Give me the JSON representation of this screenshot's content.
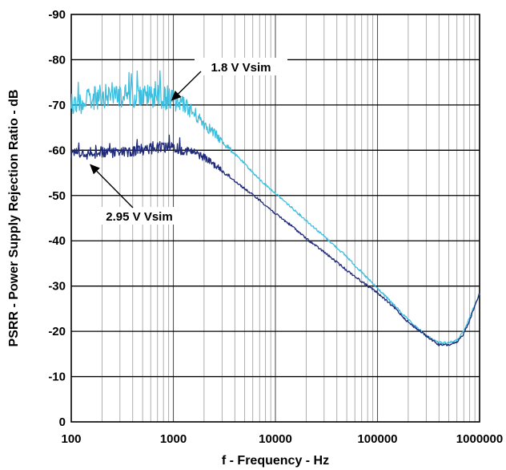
{
  "chart_data": {
    "type": "line",
    "xlabel": "f - Frequency - Hz",
    "ylabel": "PSRR - Power Supply Rejection Ratio - dB",
    "x_scale": "log",
    "xlim": [
      100,
      1000000
    ],
    "ylim": [
      0,
      -90
    ],
    "y_ticks": [
      0,
      -10,
      -20,
      -30,
      -40,
      -50,
      -60,
      -70,
      -80,
      -90
    ],
    "x_ticks": [
      100,
      1000,
      10000,
      100000,
      1000000
    ],
    "x_tick_labels": [
      "100",
      "1000",
      "10000",
      "100000",
      "1000000"
    ],
    "y_tick_labels": [
      "0",
      "-10",
      "-20",
      "-30",
      "-40",
      "-50",
      "-60",
      "-70",
      "-80",
      "-90"
    ],
    "grid": true,
    "colors": {
      "1.8 V Vsim": "#3dbfe0",
      "2.95 V Vsim": "#1f2a7a"
    },
    "series": [
      {
        "name": "1.8 V Vsim",
        "color": "#3dbfe0",
        "x": [
          100,
          150,
          200,
          300,
          500,
          700,
          1000,
          1300,
          1600,
          2000,
          3000,
          5000,
          7000,
          10000,
          15000,
          20000,
          30000,
          50000,
          70000,
          100000,
          150000,
          200000,
          300000,
          400000,
          500000,
          600000,
          700000,
          800000,
          1000000
        ],
        "y": [
          -70,
          -71,
          -72,
          -72,
          -72,
          -72,
          -71,
          -70,
          -68,
          -66,
          -62,
          -57,
          -53.5,
          -50.5,
          -47,
          -44.5,
          -41,
          -36.5,
          -33,
          -29.5,
          -25.5,
          -22.5,
          -19,
          -17.5,
          -17.5,
          -18,
          -20,
          -23,
          -28.5
        ]
      },
      {
        "name": "2.95 V Vsim",
        "color": "#1f2a7a",
        "x": [
          100,
          150,
          200,
          300,
          500,
          700,
          1000,
          1300,
          1600,
          2000,
          3000,
          5000,
          7000,
          10000,
          15000,
          20000,
          30000,
          50000,
          70000,
          100000,
          150000,
          200000,
          300000,
          400000,
          500000,
          600000,
          700000,
          800000,
          1000000
        ],
        "y": [
          -59,
          -59,
          -59.5,
          -59.5,
          -60,
          -60.5,
          -60.5,
          -60,
          -59.5,
          -58.5,
          -55.5,
          -51.5,
          -49,
          -46,
          -43,
          -40.5,
          -37.5,
          -33.5,
          -31,
          -28.5,
          -25,
          -22,
          -19,
          -17,
          -17,
          -17.5,
          -19.5,
          -22.5,
          -28.5
        ]
      }
    ],
    "annotations": [
      {
        "text": "1.8 V Vsim",
        "target_x": 900,
        "target_y": -72.5
      },
      {
        "text": "2.95 V Vsim",
        "target_x": 160,
        "target_y": -57.5
      }
    ]
  }
}
